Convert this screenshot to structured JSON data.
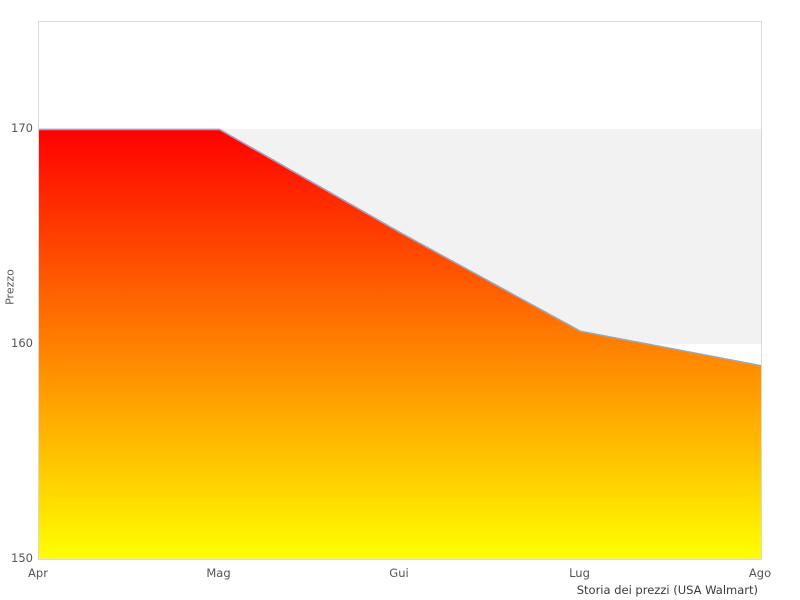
{
  "chart_data": {
    "type": "area",
    "title": "Storia dei prezzi (USA Walmart)",
    "ylabel": "Prezzo",
    "xlabel": "",
    "categories": [
      "Apr",
      "Mag",
      "Gui",
      "Lug",
      "Ago"
    ],
    "values": [
      170,
      170,
      165.2,
      160.6,
      159
    ],
    "ylim": [
      150,
      175
    ],
    "yticks": [
      150,
      160,
      170
    ],
    "grid": false,
    "legend_position": "none",
    "band": {
      "from": 160,
      "to": 170,
      "color": "#f2f2f2"
    },
    "colors": {
      "area_gradient_top": "#ff0000",
      "area_gradient_bottom": "#ffff00",
      "line": "#84add3",
      "plot_border": "#d9d9d9",
      "tick_text": "#555555",
      "caption_text": "#3a3a3a",
      "background": "#ffffff"
    }
  }
}
